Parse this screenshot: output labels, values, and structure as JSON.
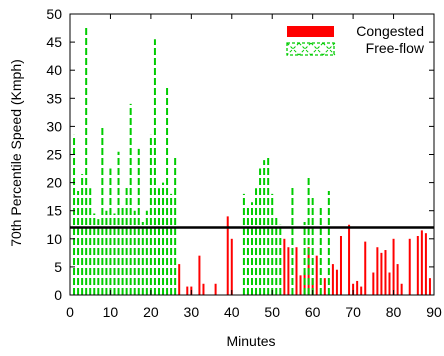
{
  "chart_data": {
    "type": "bar",
    "ylabel": "70th Percentile Speed (Kmph)",
    "xlabel": "Minutes",
    "xlim": [
      0,
      90
    ],
    "ylim": [
      0,
      50
    ],
    "xticks": [
      "0",
      "10",
      "20",
      "30",
      "40",
      "50",
      "60",
      "70",
      "80",
      "90"
    ],
    "yticks": [
      "0",
      "5",
      "10",
      "15",
      "20",
      "25",
      "30",
      "35",
      "40",
      "45",
      "50"
    ],
    "threshold": 12,
    "grid": false,
    "legend_position": "top-right",
    "series": [
      {
        "name": "Congested",
        "color": "#ff0000",
        "style": "solid",
        "x": [
          27,
          29,
          30,
          32,
          33,
          36,
          39,
          40,
          53,
          54,
          56,
          57,
          58,
          59,
          60,
          61,
          63,
          65,
          66,
          67,
          69,
          70,
          71,
          72,
          73,
          75,
          76,
          77,
          78,
          79,
          80,
          81,
          82,
          84,
          86,
          87,
          88,
          89
        ],
        "values": [
          5.5,
          1.5,
          1.5,
          7,
          2,
          2,
          14,
          10,
          10,
          8.5,
          8.5,
          3.5,
          4,
          8.5,
          3,
          7,
          3,
          5.5,
          4.5,
          10.5,
          12.5,
          2,
          2.5,
          1.5,
          9.5,
          4,
          8.5,
          7.5,
          8,
          4,
          10,
          5.5,
          2,
          10,
          10.5,
          11.5,
          11,
          3
        ]
      },
      {
        "name": "Free-flow",
        "color": "#00cc00",
        "style": "dashed",
        "x": [
          1,
          2,
          3,
          4,
          5,
          6,
          7,
          8,
          9,
          10,
          11,
          12,
          13,
          14,
          15,
          16,
          17,
          18,
          19,
          20,
          21,
          22,
          23,
          24,
          25,
          26,
          43,
          44,
          45,
          46,
          47,
          48,
          49,
          50,
          51,
          52,
          55,
          58,
          59,
          60,
          62,
          64
        ],
        "values": [
          28.5,
          18.5,
          21.5,
          47.5,
          19,
          14.5,
          13.5,
          30,
          15,
          22.5,
          14.5,
          25.5,
          16,
          19.5,
          34,
          15,
          26,
          13,
          15,
          28.5,
          45.5,
          19,
          20,
          37,
          18,
          24.5,
          18,
          16,
          16.5,
          19,
          22.5,
          24,
          24.5,
          18,
          14,
          12.5,
          19.5,
          13,
          21,
          17.5,
          15.5,
          18.5
        ]
      }
    ]
  }
}
